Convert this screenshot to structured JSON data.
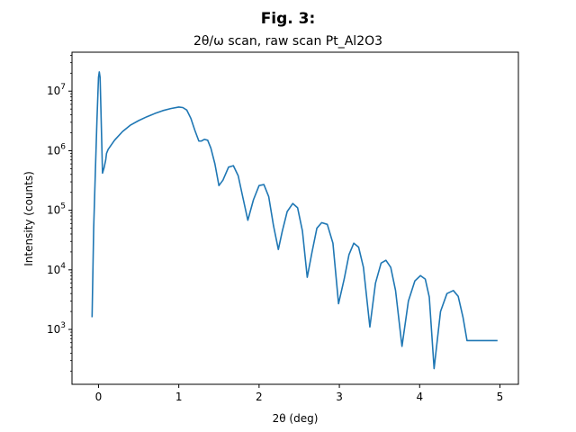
{
  "figure": {
    "suptitle": "Fig. 3:"
  },
  "chart_data": {
    "type": "line",
    "title": "2θ/ω scan, raw scan Pt_Al2O3",
    "xlabel": "2θ (deg)",
    "ylabel": "Intensity (counts)",
    "xlim": [
      -0.33,
      5.23
    ],
    "ylim": [
      120,
      45000000
    ],
    "yscale": "log",
    "grid": false,
    "x_ticks": [
      0,
      1,
      2,
      3,
      4,
      5
    ],
    "x_tick_labels": [
      "0",
      "1",
      "2",
      "3",
      "4",
      "5"
    ],
    "y_ticks": [
      1000,
      10000,
      100000,
      1000000,
      10000000
    ],
    "y_tick_labels": [
      {
        "base": "10",
        "exp": "3"
      },
      {
        "base": "10",
        "exp": "4"
      },
      {
        "base": "10",
        "exp": "5"
      },
      {
        "base": "10",
        "exp": "6"
      },
      {
        "base": "10",
        "exp": "7"
      }
    ],
    "series": [
      {
        "color": "#1f77b4",
        "x": [
          -0.08,
          -0.06,
          -0.04,
          -0.02,
          0.0,
          0.01,
          0.02,
          0.03,
          0.05,
          0.07,
          0.09,
          0.1,
          0.12,
          0.15,
          0.2,
          0.3,
          0.4,
          0.5,
          0.6,
          0.7,
          0.8,
          0.9,
          1.0,
          1.05,
          1.1,
          1.15,
          1.2,
          1.25,
          1.28,
          1.32,
          1.36,
          1.4,
          1.45,
          1.5,
          1.55,
          1.62,
          1.68,
          1.74,
          1.8,
          1.86,
          1.93,
          2.0,
          2.06,
          2.12,
          2.18,
          2.24,
          2.29,
          2.35,
          2.42,
          2.48,
          2.54,
          2.6,
          2.66,
          2.72,
          2.78,
          2.85,
          2.92,
          2.99,
          3.06,
          3.12,
          3.18,
          3.24,
          3.3,
          3.38,
          3.45,
          3.52,
          3.58,
          3.64,
          3.7,
          3.78,
          3.86,
          3.94,
          4.01,
          4.07,
          4.12,
          4.18,
          4.26,
          4.34,
          4.42,
          4.48,
          4.54,
          4.59,
          4.64,
          4.72,
          4.8,
          4.86,
          4.92,
          4.97
        ],
        "y": [
          1600,
          50000,
          400000,
          3000000,
          17000000,
          21000000,
          17000000,
          5000000,
          420000,
          520000,
          700000,
          900000,
          1050000,
          1200000,
          1500000,
          2100000,
          2700000,
          3200000,
          3700000,
          4200000,
          4700000,
          5100000,
          5400000,
          5300000,
          4800000,
          3500000,
          2200000,
          1450000,
          1450000,
          1550000,
          1500000,
          1100000,
          600000,
          260000,
          320000,
          530000,
          560000,
          380000,
          160000,
          68000,
          150000,
          260000,
          270000,
          170000,
          55000,
          22000,
          45000,
          95000,
          130000,
          110000,
          45000,
          7500,
          20000,
          50000,
          62000,
          58000,
          28000,
          2700,
          7000,
          18000,
          28000,
          24000,
          11000,
          1100,
          6000,
          13000,
          14500,
          11000,
          4500,
          520,
          3000,
          6500,
          8000,
          7000,
          3500,
          220,
          2000,
          4000,
          4500,
          3600,
          1600,
          650,
          650,
          650,
          650,
          650,
          650,
          650
        ]
      }
    ]
  }
}
